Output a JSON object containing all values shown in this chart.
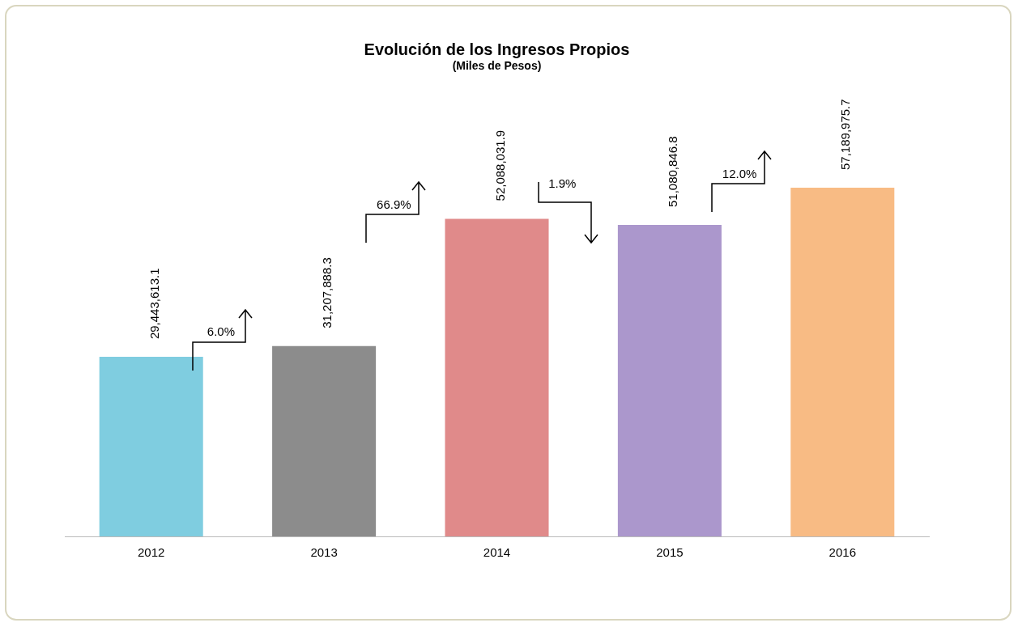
{
  "chart_data": {
    "type": "bar",
    "title": "Evolución de los Ingresos Propios",
    "subtitle": "(Miles de Pesos)",
    "categories": [
      "2012",
      "2013",
      "2014",
      "2015",
      "2016"
    ],
    "values": [
      29443613.1,
      31207888.3,
      52088031.9,
      51080846.8,
      57189975.7
    ],
    "colors": [
      "#7fcde0",
      "#8c8c8c",
      "#e08a8a",
      "#ab97cc",
      "#f8bb84"
    ],
    "value_labels": [
      "29,443,613.1",
      "31,207,888.3",
      "52,088,031.9",
      "51,080,846.8",
      "57,189,975.7"
    ],
    "annotations": [
      "6.0%",
      "66.9%",
      "1.9%",
      "12.0%"
    ],
    "grid": false,
    "legend": false
  }
}
